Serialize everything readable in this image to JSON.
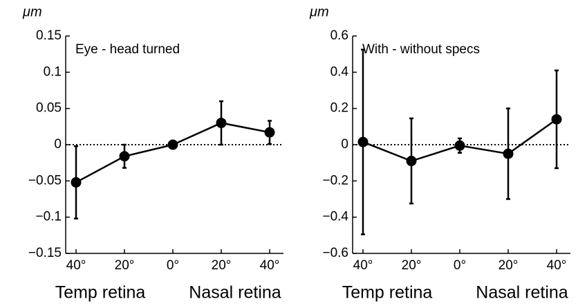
{
  "chart_data": [
    {
      "type": "line",
      "ylabel": "μm",
      "annotation": "Eye - head turned",
      "categories": [
        "40°",
        "20°",
        "0°",
        "20°",
        "40°"
      ],
      "xlabels": [
        "Temp retina",
        "Nasal retina"
      ],
      "values": [
        -0.052,
        -0.016,
        0,
        0.03,
        0.017
      ],
      "errors": [
        0.05,
        0.016,
        0.002,
        0.03,
        0.016
      ],
      "color": "#000000",
      "zero_line": true,
      "ylim": [
        -0.15,
        0.15
      ],
      "yticks": [
        {
          "value": -0.15,
          "label": "−0.15"
        },
        {
          "value": -0.1,
          "label": "−0.1"
        },
        {
          "value": -0.05,
          "label": "−0.05"
        },
        0,
        0.05,
        0.1,
        0.15
      ]
    },
    {
      "type": "line",
      "ylabel": "μm",
      "annotation": "With - without specs",
      "categories": [
        "40°",
        "20°",
        "0°",
        "20°",
        "40°"
      ],
      "xlabels": [
        "Temp retina",
        "Nasal retina"
      ],
      "values": [
        0.015,
        -0.09,
        -0.005,
        -0.05,
        0.14
      ],
      "errors": [
        0.51,
        0.235,
        0.04,
        0.25,
        0.27
      ],
      "color": "#000000",
      "zero_line": true,
      "ylim": [
        -0.6,
        0.6
      ],
      "yticks": [
        {
          "value": -0.6,
          "label": "−0.6"
        },
        {
          "value": -0.4,
          "label": "−0.4"
        },
        {
          "value": -0.2,
          "label": "−0.2"
        },
        0,
        0.2,
        0.4,
        0.6
      ]
    }
  ]
}
